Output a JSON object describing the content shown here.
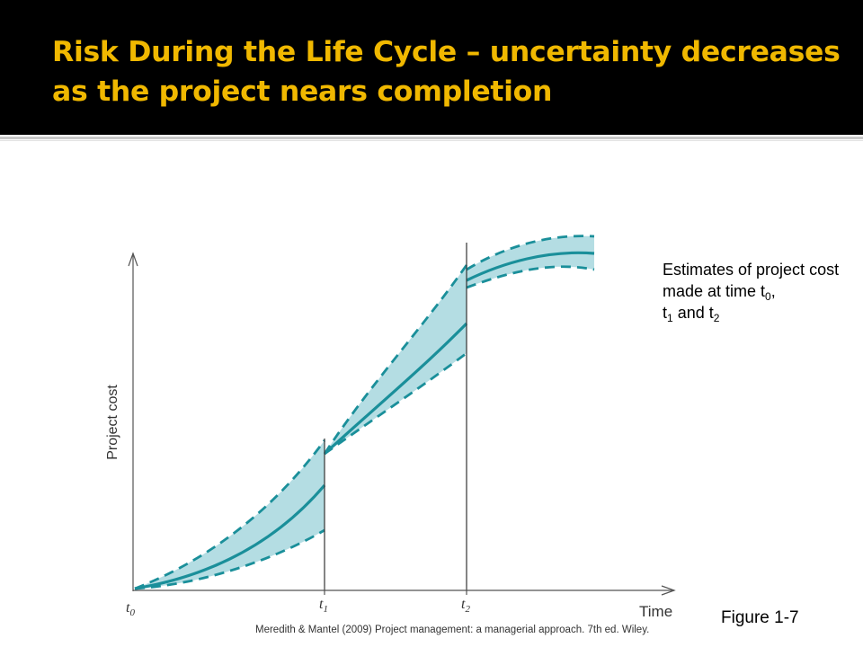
{
  "slide": {
    "title": "Risk During the Life Cycle – uncertainty decreases as the project nears completion",
    "estimates_prefix": "Estimates of project cost made at time t",
    "estimates_sub0": "0",
    "estimates_sep": ",",
    "estimates_t1": "t",
    "estimates_sub1": "1",
    "estimates_and": " and t",
    "estimates_sub2": "2",
    "figure_label": "Figure 1-7",
    "citation": "Meredith & Mantel (2009) Project management: a managerial approach. 7th ed. Wiley."
  },
  "colors": {
    "title_bg": "#000000",
    "title_text": "#f0b800",
    "curve": "#1a8f9a",
    "band_fill": "#b4dde3",
    "axis": "#555555"
  },
  "diagram": {
    "y_axis_label": "Project cost",
    "x_axis_label": "Time",
    "ticks": [
      {
        "name": "t",
        "sub": "0"
      },
      {
        "name": "t",
        "sub": "1"
      },
      {
        "name": "t",
        "sub": "2"
      }
    ]
  }
}
